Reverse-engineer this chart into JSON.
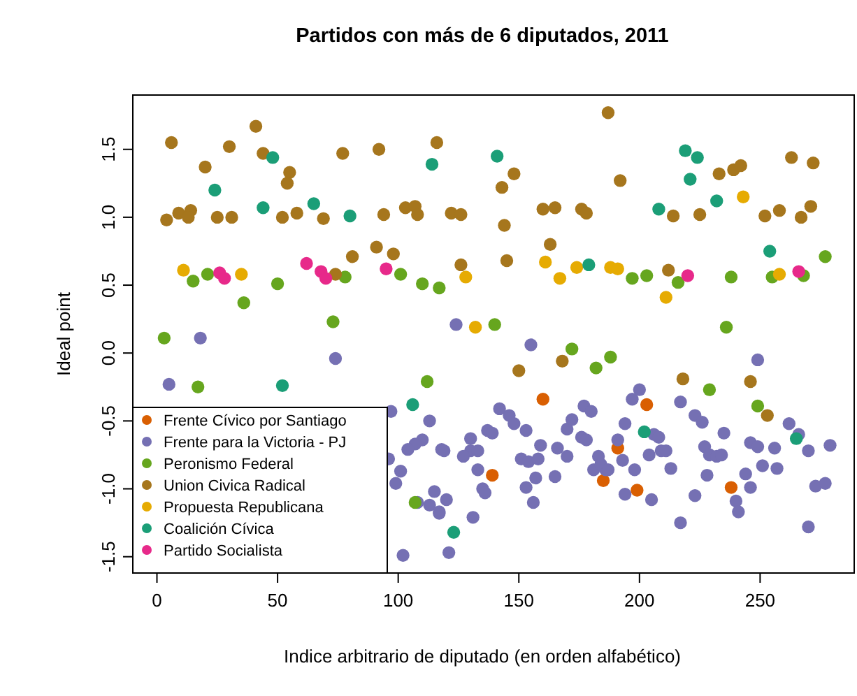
{
  "chart_data": {
    "type": "scatter",
    "title": "Partidos con más de 6 diputados, 2011",
    "xlabel": "Indice arbitrario de diputado (en orden alfabético)",
    "ylabel": "Ideal point",
    "xlim": [
      -10,
      289
    ],
    "ylim": [
      -1.62,
      1.9
    ],
    "xticks": [
      0,
      50,
      100,
      150,
      200,
      250
    ],
    "yticks": [
      {
        "value": -1.5,
        "label": "-1.5"
      },
      {
        "value": -1,
        "label": "-1.0"
      },
      {
        "value": -0.5,
        "label": "-0.5"
      },
      {
        "value": 0,
        "label": "0.0"
      },
      {
        "value": 0.5,
        "label": "0.5"
      },
      {
        "value": 1,
        "label": "1.0"
      },
      {
        "value": 1.5,
        "label": "1.5"
      }
    ],
    "grid": false,
    "legend": "bottom left",
    "marker": "circle",
    "series": [
      {
        "name": "Frente Cívico por Santiago",
        "color": "#d95f02",
        "x": [
          160,
          139,
          185,
          203,
          191,
          199,
          238
        ],
        "values": [
          -0.34,
          -0.9,
          -0.94,
          -0.38,
          -0.7,
          -1.01,
          -0.99
        ]
      },
      {
        "name": "Frente para la Victoria - PJ",
        "color": "#7570b3",
        "x": [
          5,
          18,
          74,
          97,
          113,
          110,
          107,
          104,
          118,
          96,
          101,
          99,
          113,
          117,
          124,
          155,
          119,
          130,
          130,
          127,
          133,
          137,
          139,
          142,
          146,
          148,
          153,
          151,
          154,
          158,
          159,
          157,
          153,
          156,
          165,
          166,
          170,
          170,
          172,
          176,
          177,
          180,
          178,
          183,
          181,
          186,
          133,
          135,
          136,
          115,
          120,
          117,
          131,
          108,
          249,
          200,
          197,
          217,
          223,
          226,
          194,
          235,
          206,
          208,
          204,
          209,
          211,
          191,
          193,
          184,
          187,
          198,
          213,
          227,
          229,
          232,
          234,
          228,
          246,
          249,
          251,
          256,
          257,
          244,
          246,
          240,
          241,
          194,
          205,
          223,
          217,
          102,
          121,
          270,
          262,
          266,
          270,
          273,
          277,
          279
        ],
        "values": [
          -0.23,
          0.11,
          -0.04,
          -0.43,
          -0.5,
          -0.64,
          -0.67,
          -0.71,
          -0.71,
          -0.78,
          -0.87,
          -0.96,
          -1.12,
          -1.17,
          0.21,
          0.06,
          -0.72,
          -0.63,
          -0.72,
          -0.76,
          -0.72,
          -0.57,
          -0.59,
          -0.41,
          -0.46,
          -0.52,
          -0.57,
          -0.78,
          -0.8,
          -0.78,
          -0.68,
          -0.92,
          -0.99,
          -1.1,
          -0.91,
          -0.7,
          -0.76,
          -0.56,
          -0.49,
          -0.62,
          -0.39,
          -0.43,
          -0.64,
          -0.76,
          -0.86,
          -0.86,
          -0.86,
          -1.0,
          -1.03,
          -1.02,
          -1.08,
          -1.18,
          -1.21,
          -1.1,
          -0.05,
          -0.27,
          -0.34,
          -0.36,
          -0.46,
          -0.51,
          -0.52,
          -0.59,
          -0.6,
          -0.62,
          -0.75,
          -0.72,
          -0.72,
          -0.64,
          -0.79,
          -0.82,
          -0.86,
          -0.86,
          -0.85,
          -0.69,
          -0.75,
          -0.76,
          -0.75,
          -0.9,
          -0.66,
          -0.69,
          -0.83,
          -0.7,
          -0.85,
          -0.89,
          -0.99,
          -1.09,
          -1.17,
          -1.04,
          -1.08,
          -1.05,
          -1.25,
          -1.49,
          -1.47,
          -1.28,
          -0.52,
          -0.6,
          -0.72,
          -0.98,
          -0.96,
          -0.68
        ]
      },
      {
        "name": "Peronismo Federal",
        "color": "#66a61e",
        "x": [
          3,
          17,
          15,
          21,
          36,
          50,
          78,
          73,
          101,
          110,
          117,
          112,
          107,
          140,
          172,
          182,
          188,
          197,
          203,
          216,
          238,
          255,
          236,
          229,
          249,
          277,
          268
        ],
        "values": [
          0.11,
          -0.25,
          0.53,
          0.58,
          0.37,
          0.51,
          0.56,
          0.23,
          0.58,
          0.51,
          0.48,
          -0.21,
          -1.1,
          0.21,
          0.03,
          -0.11,
          -0.03,
          0.55,
          0.57,
          0.52,
          0.56,
          0.56,
          0.19,
          -0.27,
          -0.39,
          0.71,
          0.57
        ]
      },
      {
        "name": "Union Civica Radical",
        "color": "#a6761d",
        "x": [
          6,
          41,
          30,
          20,
          44,
          4,
          9,
          14,
          13,
          25,
          31,
          77,
          92,
          116,
          55,
          54,
          52,
          58,
          69,
          94,
          103,
          107,
          91,
          98,
          81,
          74,
          148,
          143,
          108,
          122,
          126,
          144,
          160,
          165,
          176,
          187,
          163,
          126,
          145,
          150,
          168,
          192,
          233,
          239,
          242,
          178,
          214,
          225,
          252,
          258,
          212,
          218,
          246,
          253,
          263,
          272,
          267,
          271
        ],
        "values": [
          1.55,
          1.67,
          1.52,
          1.37,
          1.47,
          0.98,
          1.03,
          1.05,
          1.0,
          1.0,
          1.0,
          1.47,
          1.5,
          1.55,
          1.33,
          1.25,
          1.0,
          1.03,
          0.99,
          1.02,
          1.07,
          1.08,
          0.78,
          0.73,
          0.71,
          0.58,
          1.32,
          1.22,
          1.02,
          1.03,
          1.02,
          0.94,
          1.06,
          1.07,
          1.06,
          1.77,
          0.8,
          0.65,
          0.68,
          -0.13,
          -0.06,
          1.27,
          1.32,
          1.35,
          1.38,
          1.03,
          1.01,
          1.02,
          1.01,
          1.05,
          0.61,
          -0.19,
          -0.21,
          -0.46,
          1.44,
          1.4,
          1.0,
          1.08
        ]
      },
      {
        "name": "Propuesta Republicana",
        "color": "#e6ab02",
        "x": [
          11,
          35,
          128,
          132,
          161,
          167,
          174,
          188,
          191,
          211,
          243,
          258
        ],
        "values": [
          0.61,
          0.58,
          0.56,
          0.19,
          0.67,
          0.55,
          0.63,
          0.63,
          0.62,
          0.41,
          1.15,
          0.58
        ]
      },
      {
        "name": "Coalición Cívica",
        "color": "#1b9e77",
        "x": [
          24,
          44,
          48,
          114,
          65,
          80,
          52,
          106,
          141,
          179,
          123,
          219,
          224,
          221,
          232,
          208,
          254,
          202,
          265
        ],
        "values": [
          1.2,
          1.07,
          1.44,
          1.39,
          1.1,
          1.01,
          -0.24,
          -0.38,
          1.45,
          0.65,
          -1.32,
          1.49,
          1.44,
          1.28,
          1.12,
          1.06,
          0.75,
          -0.58,
          -0.63
        ]
      },
      {
        "name": "Partido Socialista",
        "color": "#e7298a",
        "x": [
          26,
          28,
          62,
          68,
          70,
          95,
          220,
          266
        ],
        "values": [
          0.59,
          0.55,
          0.66,
          0.6,
          0.55,
          0.62,
          0.57,
          0.6
        ]
      }
    ]
  }
}
